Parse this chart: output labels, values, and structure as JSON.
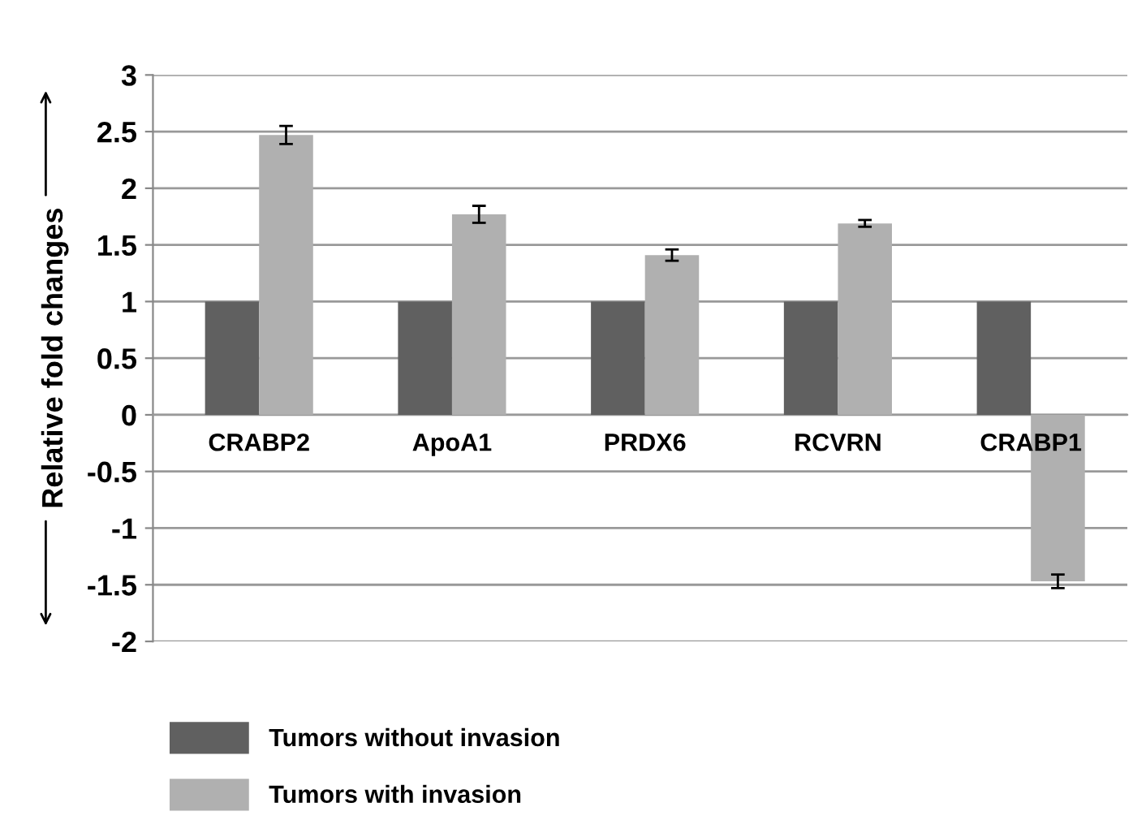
{
  "chart_data": {
    "type": "bar",
    "ylabel": "Relative fold changes",
    "categories": [
      "CRABP2",
      "ApoA1",
      "PRDX6",
      "RCVRN",
      "CRABP1"
    ],
    "series": [
      {
        "name": "Tumors without invasion",
        "color": "#606060",
        "values": [
          1,
          1,
          1,
          1,
          1
        ]
      },
      {
        "name": "Tumors with invasion",
        "color": "#b0b0b0",
        "values": [
          2.47,
          1.77,
          1.41,
          1.69,
          -1.47
        ],
        "errors": [
          0.08,
          0.075,
          0.05,
          0.03,
          0.06
        ]
      }
    ],
    "ylim": [
      -2,
      3
    ],
    "yticks": [
      -2,
      -1.5,
      -1,
      -0.5,
      0,
      0.5,
      1,
      1.5,
      2,
      2.5,
      3
    ],
    "grid": "y",
    "legend": "bottom"
  }
}
